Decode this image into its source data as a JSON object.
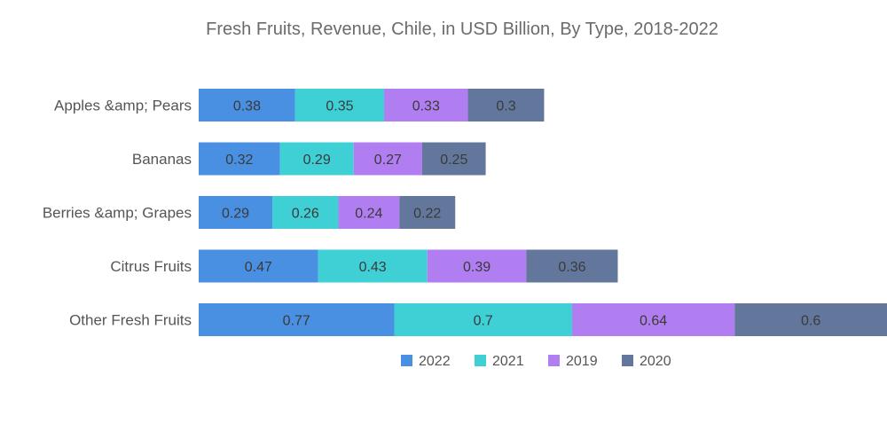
{
  "colors": {
    "s2022": "#4a90e2",
    "s2021": "#3fd0d6",
    "s2019": "#b07ef0",
    "s2020": "#63779c"
  },
  "chart_data": {
    "type": "bar",
    "orientation": "horizontal",
    "stacked": true,
    "title": "Fresh Fruits, Revenue, Chile, in USD Billion, By Type, 2018-2022",
    "categories": [
      "Apples &amp; Pears",
      "Bananas",
      "Berries &amp; Grapes",
      "Citrus Fruits",
      "Other Fresh Fruits"
    ],
    "series": [
      {
        "name": "2022",
        "color": "#4a90e2",
        "values": [
          0.38,
          0.32,
          0.29,
          0.47,
          0.77
        ]
      },
      {
        "name": "2021",
        "color": "#3fd0d6",
        "values": [
          0.35,
          0.29,
          0.26,
          0.43,
          0.7
        ]
      },
      {
        "name": "2019",
        "color": "#b07ef0",
        "values": [
          0.33,
          0.27,
          0.24,
          0.39,
          0.64
        ]
      },
      {
        "name": "2020",
        "color": "#63779c",
        "values": [
          0.3,
          0.25,
          0.22,
          0.36,
          0.6
        ]
      }
    ],
    "value_labels": [
      [
        "0.38",
        "0.32",
        "0.29",
        "0.47",
        "0.77"
      ],
      [
        "0.35",
        "0.29",
        "0.26",
        "0.43",
        "0.7"
      ],
      [
        "0.33",
        "0.27",
        "0.24",
        "0.39",
        "0.64"
      ],
      [
        "0.3",
        "0.25",
        "0.22",
        "0.36",
        "0.6"
      ]
    ],
    "xlim": [
      0,
      2.71
    ],
    "xlabel": "",
    "ylabel": "",
    "grid": false,
    "legend_position": "bottom"
  }
}
